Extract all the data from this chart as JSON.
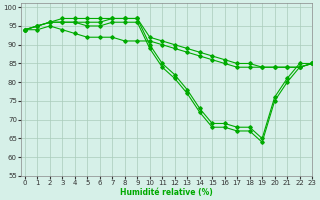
{
  "xlabel": "Humidité relative (%)",
  "background_color": "#d6f0e8",
  "grid_color": "#aaccbb",
  "line_color": "#00aa00",
  "xlim": [
    -0.3,
    23
  ],
  "ylim": [
    55,
    101
  ],
  "yticks": [
    55,
    60,
    65,
    70,
    75,
    80,
    85,
    90,
    95,
    100
  ],
  "xticks": [
    0,
    1,
    2,
    3,
    4,
    5,
    6,
    7,
    8,
    9,
    10,
    11,
    12,
    13,
    14,
    15,
    16,
    17,
    18,
    19,
    20,
    21,
    22,
    23
  ],
  "series": [
    [
      94,
      95,
      96,
      97,
      97,
      97,
      97,
      97,
      97,
      97,
      92,
      91,
      90,
      89,
      88,
      87,
      86,
      85,
      85,
      84,
      84,
      84,
      84,
      85
    ],
    [
      94,
      94,
      95,
      94,
      93,
      92,
      92,
      92,
      91,
      91,
      91,
      90,
      89,
      88,
      87,
      86,
      85,
      84,
      84,
      84,
      84,
      84,
      84,
      85
    ],
    [
      94,
      95,
      96,
      96,
      96,
      96,
      96,
      97,
      97,
      97,
      90,
      85,
      82,
      78,
      73,
      69,
      69,
      68,
      68,
      65,
      76,
      81,
      85,
      85
    ],
    [
      94,
      95,
      96,
      96,
      96,
      95,
      95,
      96,
      96,
      96,
      89,
      84,
      81,
      77,
      72,
      68,
      68,
      67,
      67,
      64,
      75,
      80,
      84,
      85
    ]
  ]
}
